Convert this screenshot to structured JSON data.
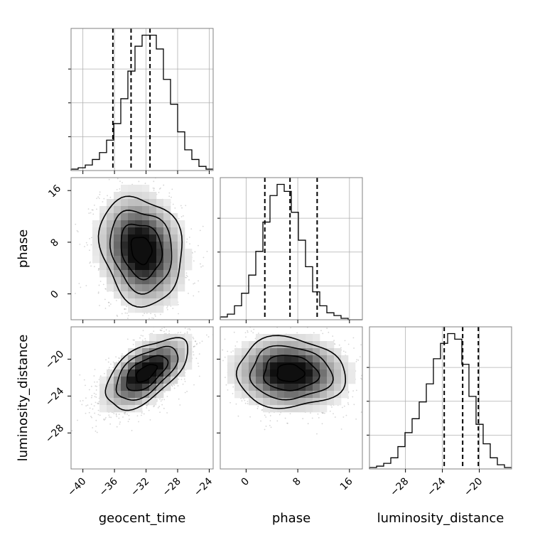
{
  "chart_data": {
    "type": "corner",
    "parameters": [
      "geocent_time",
      "phase",
      "luminosity_distance"
    ],
    "axis_labels": {
      "x": [
        "geocent_time",
        "phase",
        "luminosity_distance"
      ],
      "y": [
        "phase",
        "luminosity_distance"
      ]
    },
    "ranges": {
      "geocent_time": [
        -41.5,
        -23.5
      ],
      "phase": [
        -4,
        18
      ],
      "luminosity_distance": [
        -31.9,
        -16.5
      ]
    },
    "ticks": {
      "geocent_time": [
        -40,
        -36,
        -32,
        -28,
        -24
      ],
      "phase": [
        0,
        8,
        16
      ],
      "luminosity_distance": [
        -28,
        -24,
        -20
      ]
    },
    "tick_labels": {
      "geocent_time": [
        "−40",
        "−36",
        "−32",
        "−28",
        "−24"
      ],
      "phase": [
        "0",
        "8",
        "16"
      ],
      "luminosity_distance": [
        "−28",
        "−24",
        "−20"
      ]
    },
    "marginals": {
      "geocent_time": {
        "bin_edges_start": -41.5,
        "bin_width": 0.9,
        "counts": [
          0.01,
          0.02,
          0.04,
          0.08,
          0.13,
          0.22,
          0.34,
          0.52,
          0.72,
          0.9,
          0.98,
          0.98,
          0.88,
          0.66,
          0.48,
          0.28,
          0.15,
          0.08,
          0.03,
          0.01
        ],
        "quantile_lines": [
          -36.2,
          -33.9,
          -31.5
        ]
      },
      "phase": {
        "bin_edges_start": -4,
        "bin_width": 1.1,
        "counts": [
          0.02,
          0.04,
          0.1,
          0.19,
          0.32,
          0.49,
          0.7,
          0.89,
          0.97,
          0.92,
          0.77,
          0.57,
          0.38,
          0.2,
          0.1,
          0.05,
          0.03,
          0.01,
          0.0,
          0.0
        ],
        "quantile_lines": [
          2.9,
          6.8,
          11.0
        ]
      },
      "luminosity_distance": {
        "bin_edges_start": -31.9,
        "bin_width": 0.77,
        "counts": [
          0.01,
          0.02,
          0.04,
          0.08,
          0.16,
          0.26,
          0.36,
          0.48,
          0.61,
          0.79,
          0.9,
          0.97,
          0.93,
          0.75,
          0.52,
          0.32,
          0.18,
          0.08,
          0.03,
          0.01
        ],
        "quantile_lines": [
          -23.8,
          -21.8,
          -20.1
        ]
      }
    },
    "joint": [
      {
        "x": "geocent_time",
        "y": "phase",
        "mean": [
          -32.6,
          6.8
        ],
        "sd": [
          2.6,
          4.2
        ],
        "rho": -0.15
      },
      {
        "x": "geocent_time",
        "y": "luminosity_distance",
        "mean": [
          -32.0,
          -21.5
        ],
        "sd": [
          2.6,
          1.9
        ],
        "rho": 0.58
      },
      {
        "x": "phase",
        "y": "luminosity_distance",
        "mean": [
          6.8,
          -21.5
        ],
        "sd": [
          4.2,
          1.9
        ],
        "rho": -0.05
      }
    ],
    "grid": true
  }
}
